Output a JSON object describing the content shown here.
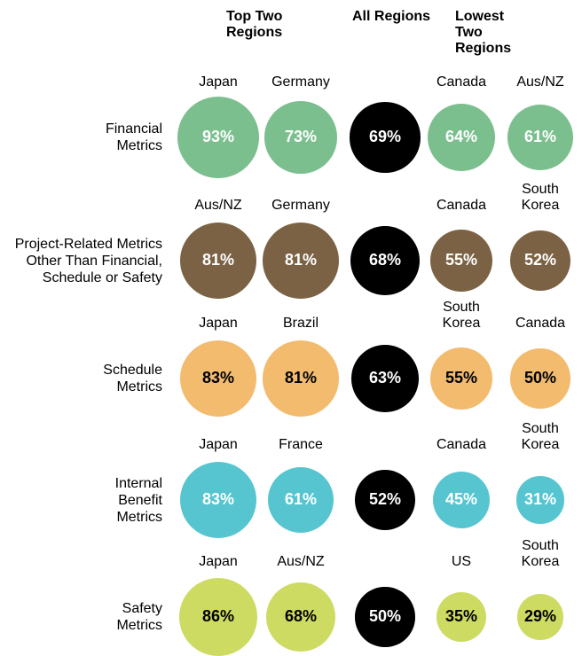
{
  "chart_data": {
    "type": "bubble",
    "column_headers": [
      "Top Two Regions",
      "All Regions",
      "Lowest Two Regions"
    ],
    "highlight_color": "#000000",
    "series": [
      {
        "name": "Financial Metrics",
        "color": "#7bbf8e",
        "label_color": "#ffffff",
        "regions": [
          "Japan",
          "Germany",
          null,
          "Canada",
          "Aus/NZ"
        ],
        "values": [
          93,
          73,
          69,
          64,
          61
        ],
        "value_labels": [
          "93%",
          "73%",
          "69%",
          "64%",
          "61%"
        ]
      },
      {
        "name": "Project-Related Metrics Other Than Financial, Schedule or Safety",
        "color": "#7b6244",
        "label_color": "#ffffff",
        "regions": [
          "Aus/NZ",
          "Germany",
          null,
          "Canada",
          "South Korea"
        ],
        "values": [
          81,
          81,
          68,
          55,
          52
        ],
        "value_labels": [
          "81%",
          "81%",
          "68%",
          "55%",
          "52%"
        ]
      },
      {
        "name": "Schedule Metrics",
        "color": "#f2bb6e",
        "label_color": "#000000",
        "regions": [
          "Japan",
          "Brazil",
          null,
          "South Korea",
          "Canada"
        ],
        "values": [
          83,
          81,
          63,
          55,
          50
        ],
        "value_labels": [
          "83%",
          "81%",
          "63%",
          "55%",
          "50%"
        ]
      },
      {
        "name": "Internal Benefit Metrics",
        "color": "#56c5d0",
        "label_color": "#ffffff",
        "regions": [
          "Japan",
          "France",
          null,
          "Canada",
          "South Korea"
        ],
        "values": [
          83,
          61,
          52,
          45,
          31
        ],
        "value_labels": [
          "83%",
          "61%",
          "52%",
          "45%",
          "31%"
        ]
      },
      {
        "name": "Safety Metrics",
        "color": "#cddb62",
        "label_color": "#000000",
        "regions": [
          "Japan",
          "Aus/NZ",
          null,
          "US",
          "South Korea"
        ],
        "values": [
          86,
          68,
          50,
          35,
          29
        ],
        "value_labels": [
          "86%",
          "68%",
          "50%",
          "35%",
          "29%"
        ]
      }
    ]
  }
}
